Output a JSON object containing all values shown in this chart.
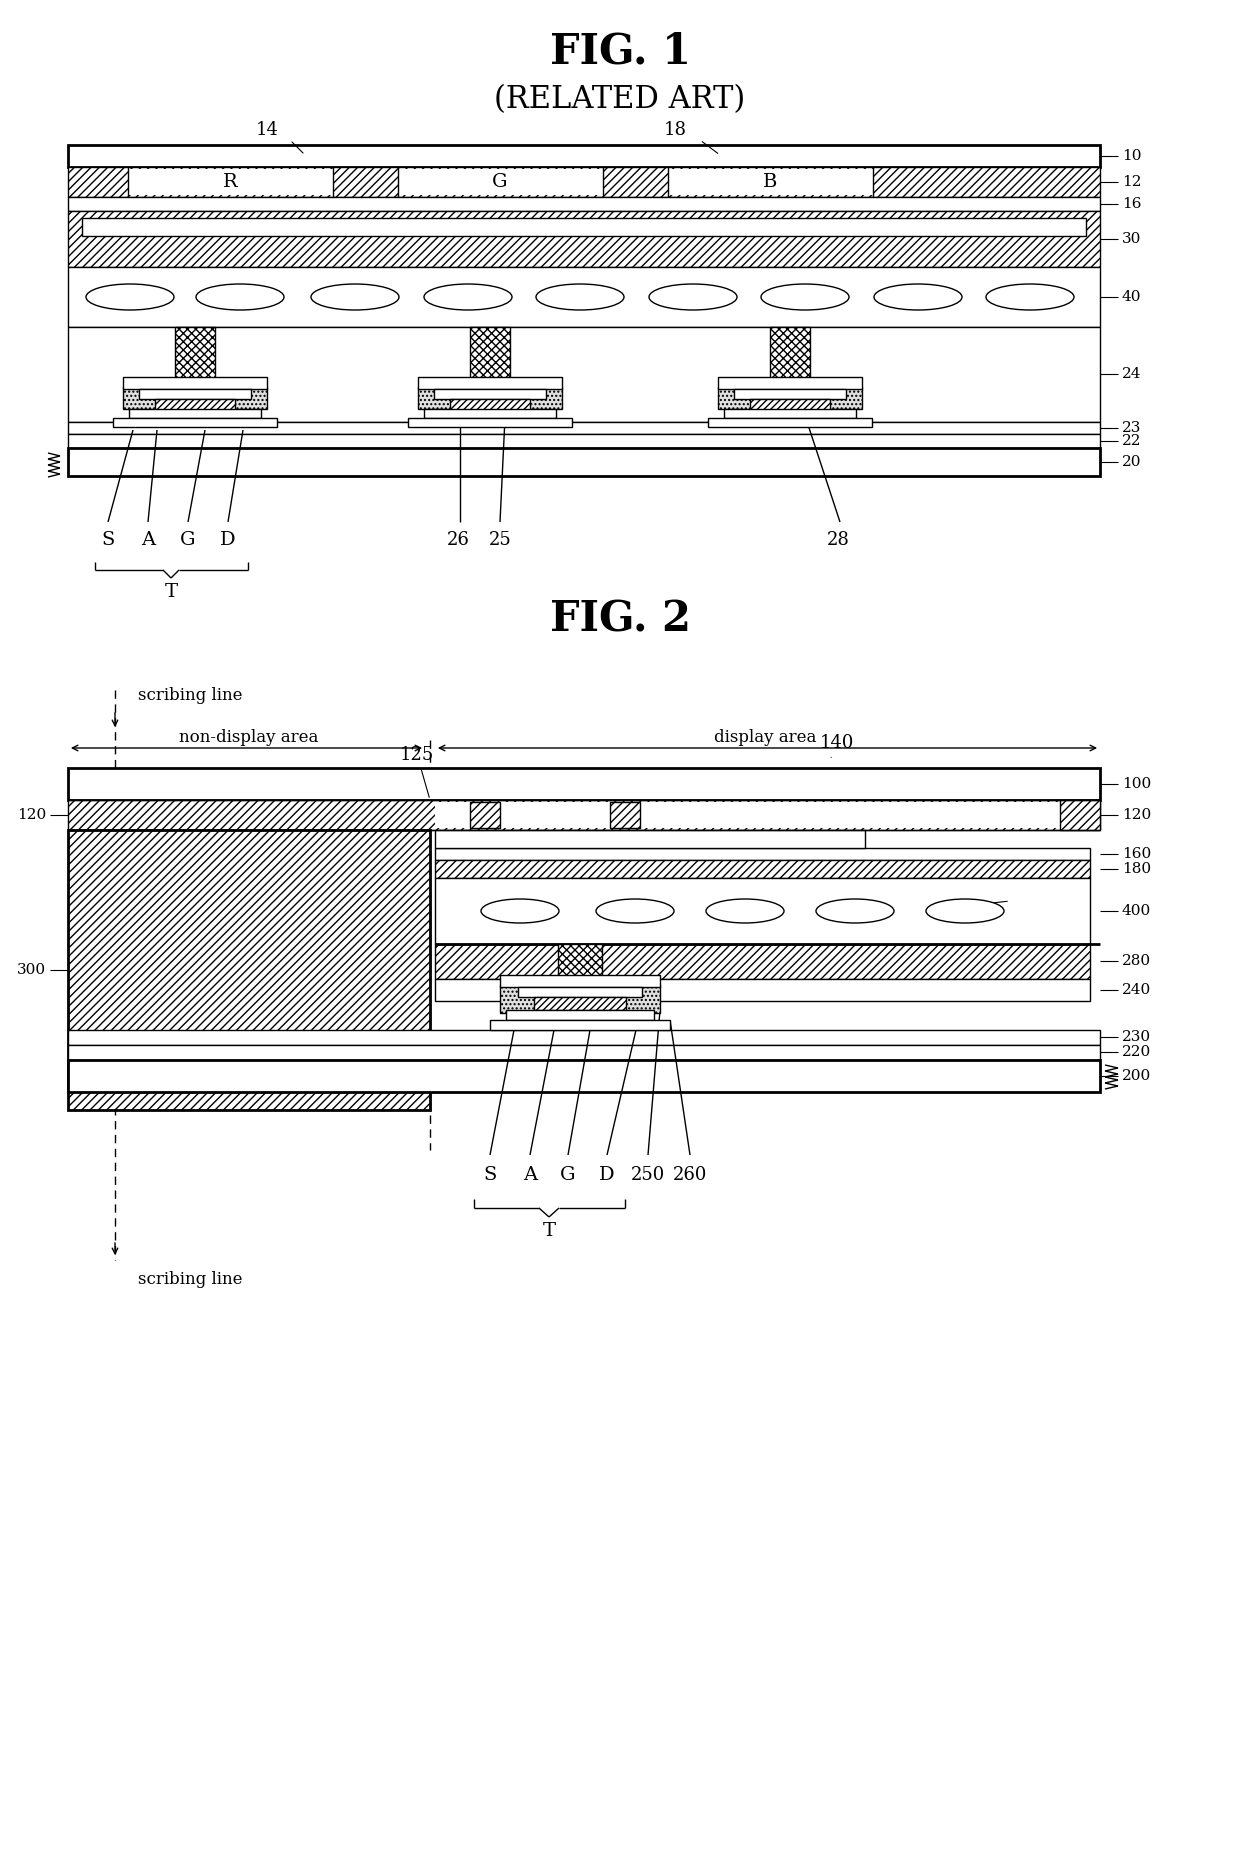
{
  "fig1_title": "FIG. 1",
  "fig1_subtitle": "(RELATED ART)",
  "fig2_title": "FIG. 2",
  "bg_color": "#ffffff",
  "lc": "#000000"
}
